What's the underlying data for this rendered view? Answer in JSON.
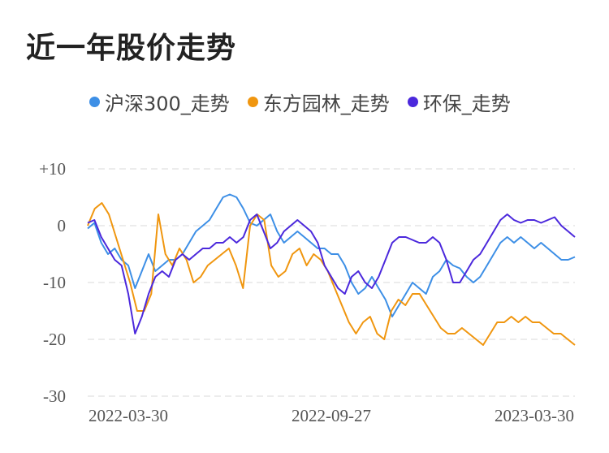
{
  "title": "近一年股价走势",
  "chart_data": {
    "type": "line",
    "ylim": [
      -30,
      10
    ],
    "yticks": [
      {
        "value": 10,
        "label": "+10"
      },
      {
        "value": 0,
        "label": "0"
      },
      {
        "value": -10,
        "label": "-10"
      },
      {
        "value": -20,
        "label": "-20"
      },
      {
        "value": -30,
        "label": "-30"
      }
    ],
    "xticks": [
      "2022-03-30",
      "2022-09-27",
      "2023-03-30"
    ],
    "grid": true,
    "legend_position": "top",
    "series": [
      {
        "name": "沪深300_走势",
        "color": "#3d8fe6",
        "values": [
          -0.5,
          0.5,
          -3,
          -5,
          -4,
          -6,
          -7,
          -11,
          -8,
          -5,
          -8,
          -7,
          -6,
          -6,
          -5,
          -3,
          -1,
          0,
          1,
          3,
          5,
          5.5,
          5,
          3,
          0.5,
          0,
          1,
          2,
          -1,
          -3,
          -2,
          -1,
          -2,
          -3,
          -4,
          -4,
          -5,
          -5,
          -7,
          -10,
          -12,
          -11,
          -9,
          -11,
          -13,
          -16,
          -14,
          -12,
          -10,
          -11,
          -12,
          -9,
          -8,
          -6,
          -7,
          -7.5,
          -9,
          -10,
          -9,
          -7,
          -5,
          -3,
          -2,
          -3,
          -2,
          -3,
          -4,
          -3,
          -4,
          -5,
          -6,
          -6,
          -5.5
        ]
      },
      {
        "name": "东方园林_走势",
        "color": "#f0960f",
        "values": [
          0,
          3,
          4,
          2,
          -2,
          -6,
          -10,
          -15,
          -15,
          -12,
          2,
          -5,
          -7,
          -4,
          -6,
          -10,
          -9,
          -7,
          -6,
          -5,
          -4,
          -7,
          -11,
          0,
          2,
          1,
          -7,
          -9,
          -8,
          -5,
          -4,
          -7,
          -5,
          -6,
          -8,
          -11,
          -14,
          -17,
          -19,
          -17,
          -16,
          -19,
          -20,
          -15,
          -13,
          -14,
          -12,
          -12,
          -14,
          -16,
          -18,
          -19,
          -19,
          -18,
          -19,
          -20,
          -21,
          -19,
          -17,
          -17,
          -16,
          -17,
          -16,
          -17,
          -17,
          -18,
          -19,
          -19,
          -20,
          -21
        ]
      },
      {
        "name": "环保_走势",
        "color": "#4b28dc",
        "values": [
          0.5,
          1,
          -2,
          -4,
          -6,
          -7,
          -12,
          -19,
          -16,
          -12,
          -9,
          -8,
          -9,
          -6,
          -5,
          -6,
          -5,
          -4,
          -4,
          -3,
          -3,
          -2,
          -3,
          -2,
          1,
          2,
          -1,
          -4,
          -3,
          -1,
          0,
          1,
          0,
          -1,
          -3,
          -7,
          -9,
          -11,
          -12,
          -9,
          -8,
          -10,
          -11,
          -9,
          -6,
          -3,
          -2,
          -2,
          -2.5,
          -3,
          -3,
          -2,
          -3,
          -6,
          -10,
          -10,
          -8,
          -6,
          -5,
          -3,
          -1,
          1,
          2,
          1,
          0.5,
          1,
          1,
          0.5,
          1,
          1.5,
          0,
          -1,
          -2
        ]
      }
    ]
  }
}
